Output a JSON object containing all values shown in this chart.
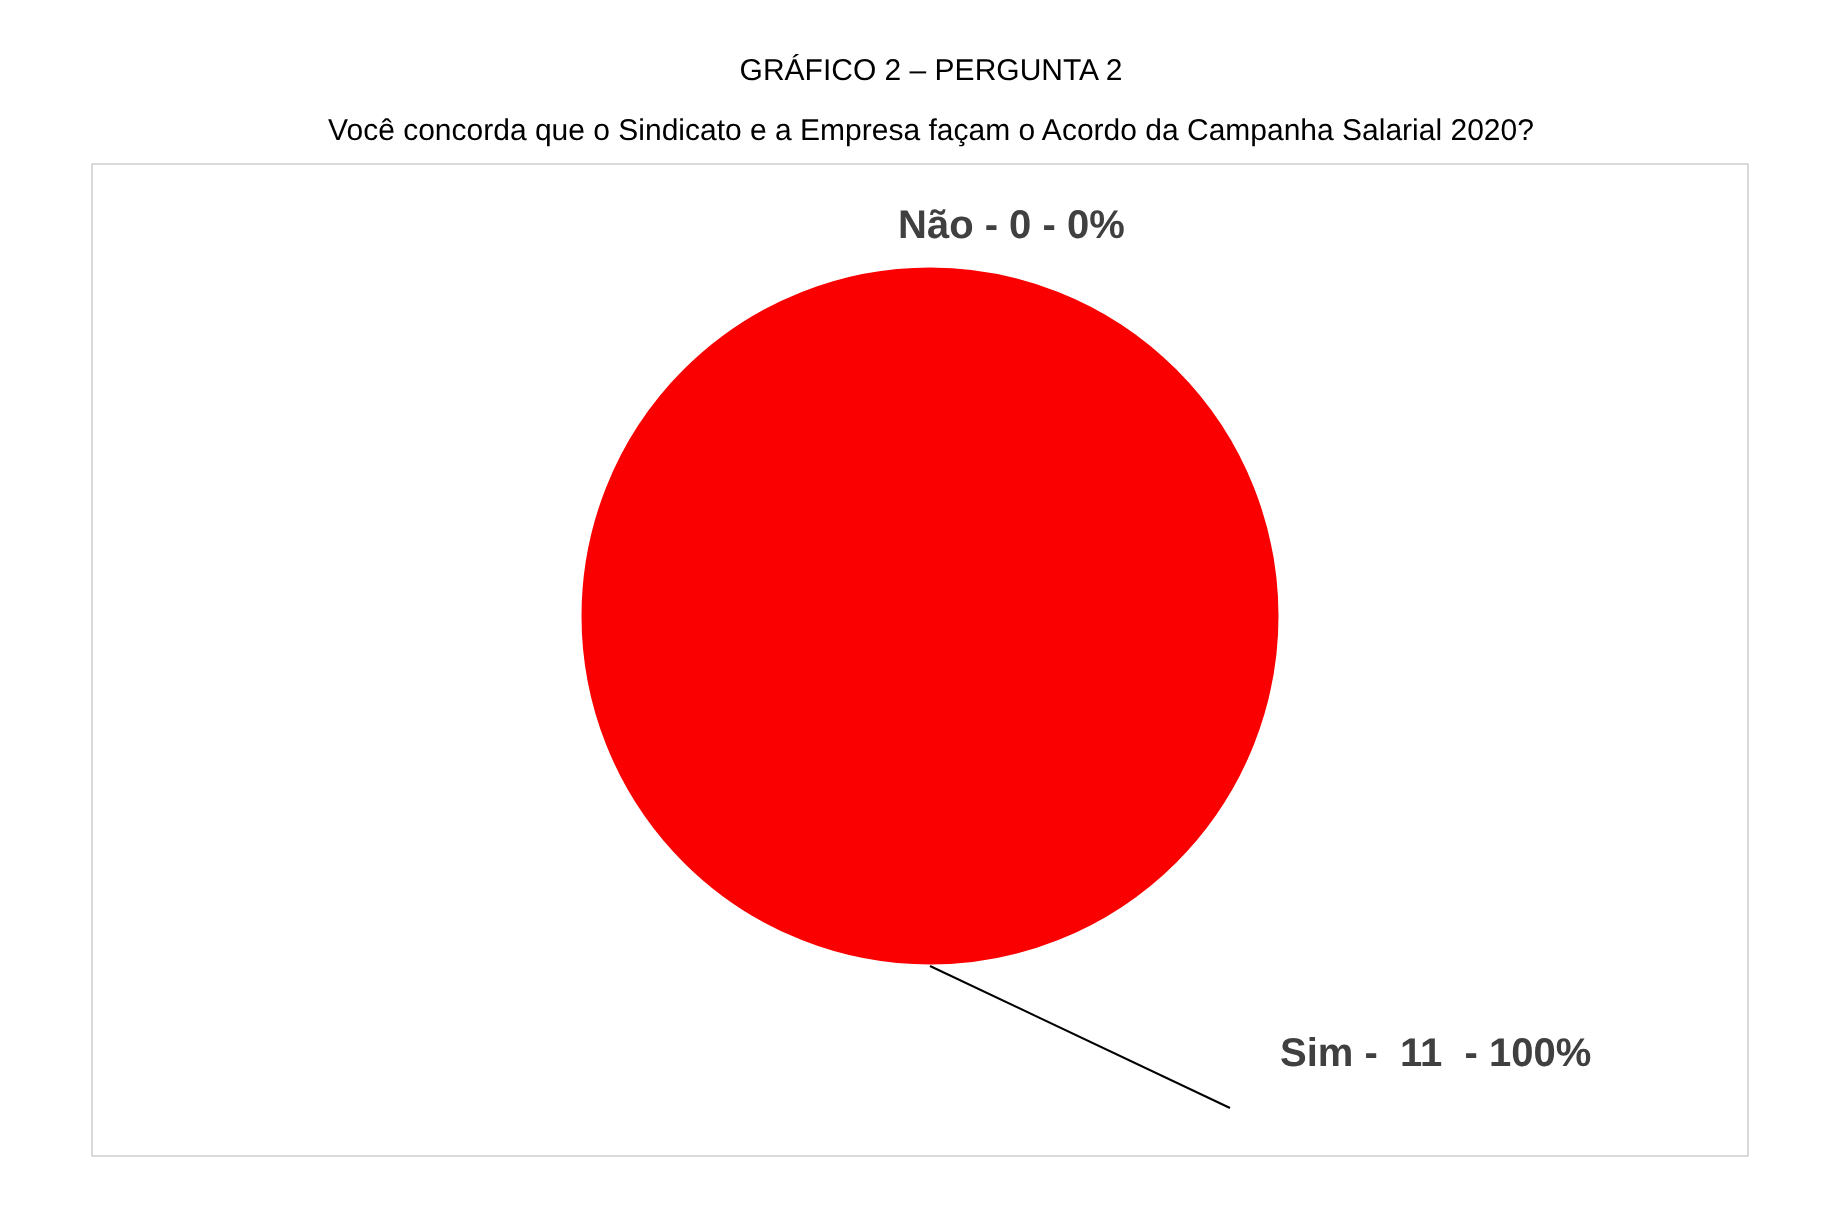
{
  "chart_data": {
    "type": "pie",
    "title": "GRÁFICO 2 – PERGUNTA 2",
    "subtitle": "Você concorda que o Sindicato e a Empresa façam o Acordo da Campanha Salarial 2020?",
    "categories": [
      "Não - 0 - 0%",
      "Sim -  11  - 100%"
    ],
    "values": [
      0,
      100
    ],
    "colors": [
      "#3366cc",
      "#fa0000"
    ]
  }
}
